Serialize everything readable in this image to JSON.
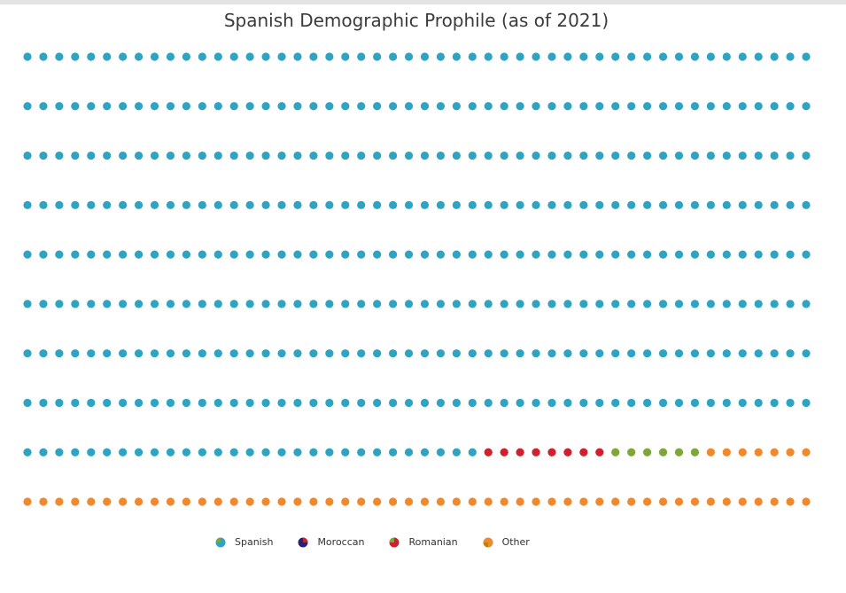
{
  "chart_data": {
    "type": "waffle",
    "title": "Spanish Demographic Prophile (as of 2021)",
    "rows": 10,
    "columns": 50,
    "total_units": 500,
    "categories": [
      {
        "name": "Spanish",
        "units": 429,
        "color": "#2fa3c2"
      },
      {
        "name": "Moroccan",
        "units": 8,
        "color": "#d0202e"
      },
      {
        "name": "Romanian",
        "units": 6,
        "color": "#7fa63a"
      },
      {
        "name": "Other",
        "units": 57,
        "color": "#f0892e"
      }
    ],
    "legend_position": "bottom-center",
    "legend_icon_colors": {
      "Spanish": [
        "#2fa3c2",
        "#7fa63a"
      ],
      "Moroccan": [
        "#d0202e",
        "#2a1f70"
      ],
      "Romanian": [
        "#7fa63a",
        "#d0202e"
      ],
      "Other": [
        "#f0892e",
        "#b8860b"
      ]
    }
  }
}
